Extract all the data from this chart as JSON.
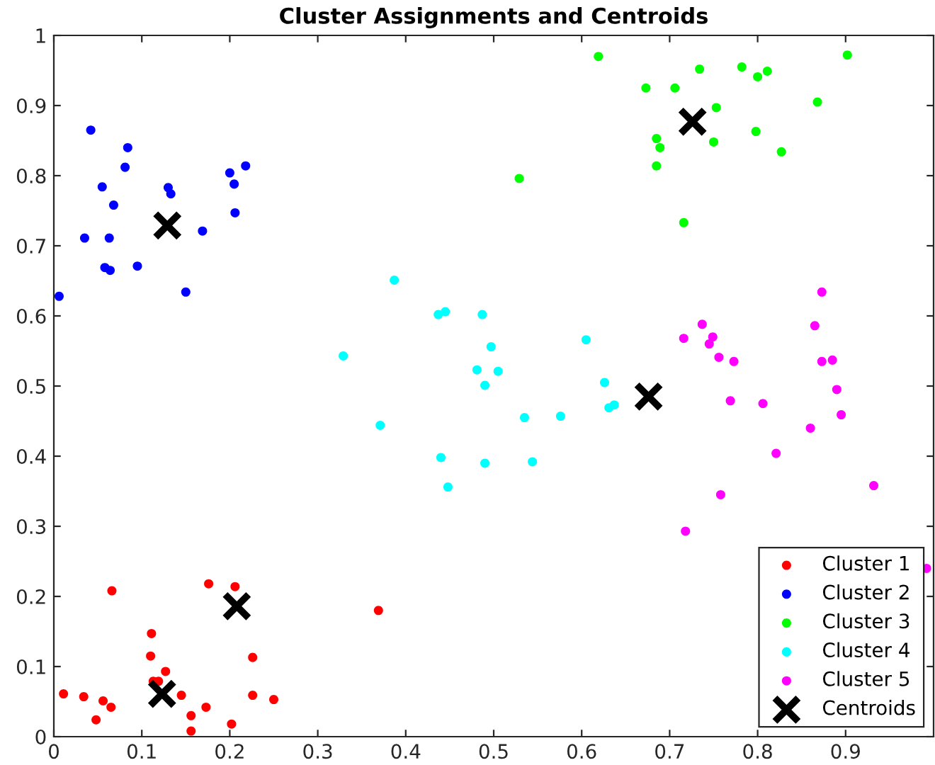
{
  "chart_data": {
    "type": "scatter",
    "title": "Cluster Assignments and Centroids",
    "xlim": [
      0,
      1
    ],
    "ylim": [
      0,
      1
    ],
    "xticks": [
      0,
      0.1,
      0.2,
      0.3,
      0.4,
      0.5,
      0.6,
      0.7,
      0.8,
      0.9
    ],
    "yticks": [
      0,
      0.1,
      0.2,
      0.3,
      0.4,
      0.5,
      0.6,
      0.7,
      0.8,
      0.9,
      1
    ],
    "grid": false,
    "legend": "bottom right",
    "series": [
      {
        "name": "Cluster 1",
        "color": "#ff0000",
        "marker": "circle",
        "x": [
          0.011,
          0.034,
          0.048,
          0.056,
          0.065,
          0.066,
          0.111,
          0.11,
          0.119,
          0.127,
          0.145,
          0.156,
          0.173,
          0.176,
          0.206,
          0.226,
          0.226,
          0.25,
          0.156,
          0.202,
          0.369,
          0.113
        ],
        "values": [
          0.061,
          0.057,
          0.024,
          0.051,
          0.042,
          0.208,
          0.147,
          0.115,
          0.079,
          0.093,
          0.059,
          0.03,
          0.042,
          0.218,
          0.214,
          0.113,
          0.059,
          0.053,
          0.008,
          0.018,
          0.18,
          0.079
        ]
      },
      {
        "name": "Cluster 2",
        "color": "#0000ff",
        "marker": "circle",
        "x": [
          0.042,
          0.084,
          0.081,
          0.055,
          0.068,
          0.035,
          0.063,
          0.058,
          0.064,
          0.095,
          0.006,
          0.15,
          0.13,
          0.133,
          0.169,
          0.2,
          0.218,
          0.205,
          0.206
        ],
        "values": [
          0.865,
          0.84,
          0.812,
          0.784,
          0.758,
          0.711,
          0.711,
          0.669,
          0.665,
          0.671,
          0.628,
          0.634,
          0.783,
          0.774,
          0.721,
          0.804,
          0.814,
          0.788,
          0.747
        ]
      },
      {
        "name": "Cluster 3",
        "color": "#00ff00",
        "marker": "circle",
        "x": [
          0.782,
          0.8,
          0.811,
          0.902,
          0.753,
          0.868,
          0.75,
          0.798,
          0.827,
          0.619,
          0.673,
          0.706,
          0.734,
          0.685,
          0.689,
          0.685,
          0.529,
          0.716
        ],
        "values": [
          0.955,
          0.941,
          0.949,
          0.972,
          0.897,
          0.905,
          0.848,
          0.863,
          0.834,
          0.97,
          0.925,
          0.925,
          0.952,
          0.853,
          0.84,
          0.814,
          0.796,
          0.733
        ]
      },
      {
        "name": "Cluster 4",
        "color": "#00ffff",
        "marker": "circle",
        "x": [
          0.387,
          0.437,
          0.445,
          0.487,
          0.329,
          0.497,
          0.481,
          0.505,
          0.49,
          0.605,
          0.626,
          0.631,
          0.637,
          0.535,
          0.576,
          0.371,
          0.44,
          0.49,
          0.544,
          0.448
        ],
        "values": [
          0.651,
          0.602,
          0.606,
          0.602,
          0.543,
          0.556,
          0.523,
          0.521,
          0.501,
          0.566,
          0.505,
          0.469,
          0.473,
          0.455,
          0.457,
          0.444,
          0.398,
          0.39,
          0.392,
          0.356
        ]
      },
      {
        "name": "Cluster 5",
        "color": "#ff00ff",
        "marker": "circle",
        "x": [
          0.873,
          0.737,
          0.716,
          0.745,
          0.749,
          0.756,
          0.773,
          0.865,
          0.873,
          0.885,
          0.89,
          0.895,
          0.769,
          0.806,
          0.86,
          0.821,
          0.932,
          0.758,
          0.718,
          0.992
        ],
        "values": [
          0.634,
          0.588,
          0.568,
          0.56,
          0.57,
          0.541,
          0.535,
          0.586,
          0.535,
          0.537,
          0.495,
          0.459,
          0.479,
          0.475,
          0.44,
          0.404,
          0.358,
          0.345,
          0.293,
          0.24
        ]
      },
      {
        "name": "Centroids",
        "color": "#000000",
        "marker": "cross",
        "x": [
          0.123,
          0.208,
          0.129,
          0.726,
          0.676
        ],
        "values": [
          0.061,
          0.186,
          0.729,
          0.877,
          0.485
        ]
      }
    ]
  }
}
